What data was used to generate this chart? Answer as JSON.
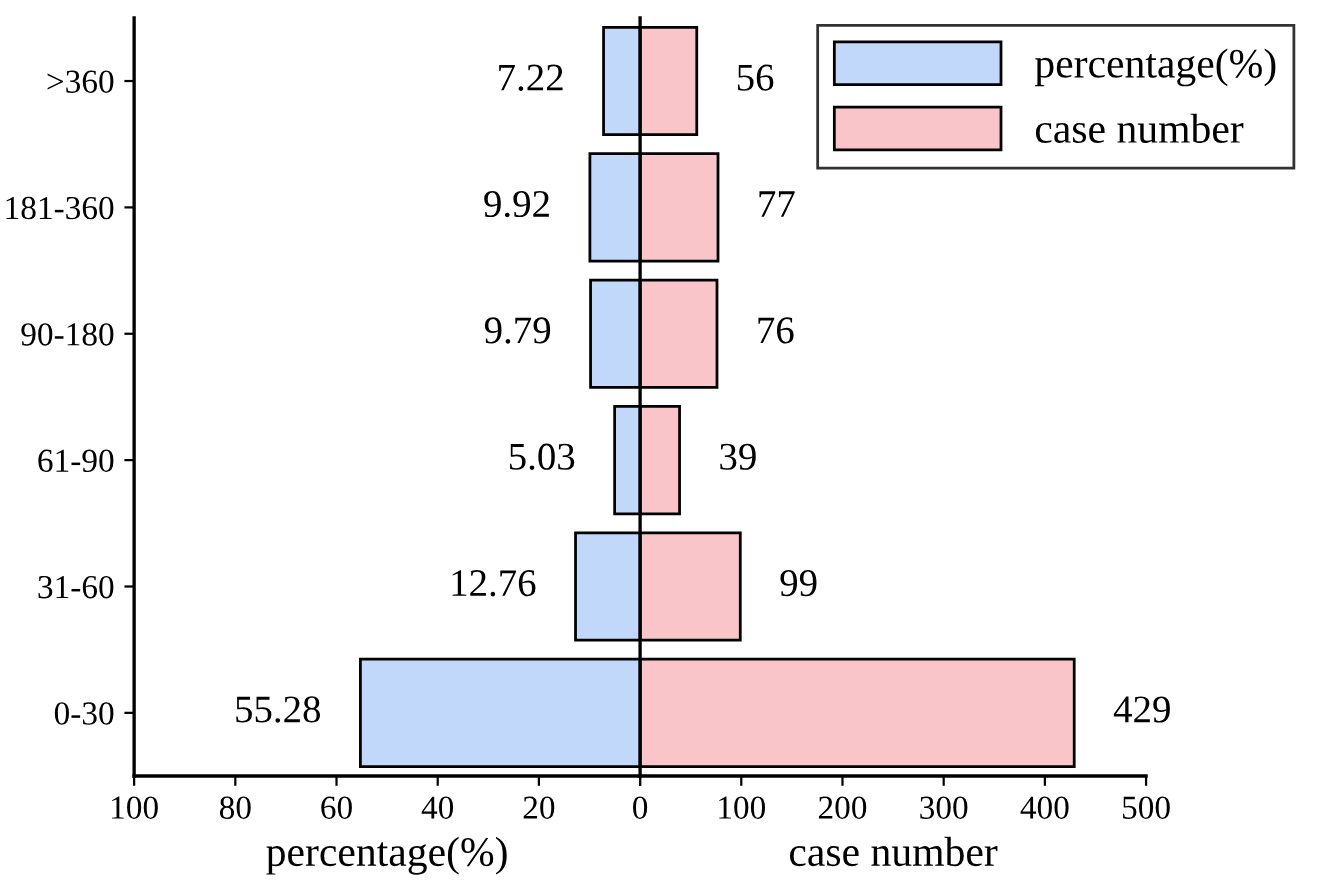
{
  "chart_data": [
    {
      "type": "bar",
      "orientation": "horizontal",
      "categories": [
        ">360",
        "181-360",
        "90-180",
        "61-90",
        "31-60",
        "0-30"
      ],
      "xlabel": "percentage(%)",
      "xlim": [
        100,
        0
      ],
      "xticks": [
        100,
        80,
        60,
        40,
        20,
        0
      ],
      "data_labels": true,
      "legend": "top right",
      "series": [
        {
          "name": "percentage(%)",
          "color": "#c1d8fb",
          "values": [
            7.22,
            9.92,
            9.79,
            5.03,
            12.76,
            55.28
          ]
        }
      ]
    },
    {
      "type": "bar",
      "orientation": "horizontal",
      "categories": [
        null,
        null,
        null,
        null,
        null,
        null
      ],
      "xlabel": "case number",
      "xlim": [
        0,
        500
      ],
      "xticks": [
        {
          "value": 0,
          "label": null
        },
        100,
        200,
        300,
        400,
        500
      ],
      "data_labels": true,
      "legend": "top right",
      "tick_labels": "x",
      "series": [
        {
          "name": "case number",
          "color": "#f9c5c8",
          "values": [
            56,
            77,
            76,
            39,
            99,
            429
          ]
        }
      ]
    }
  ]
}
